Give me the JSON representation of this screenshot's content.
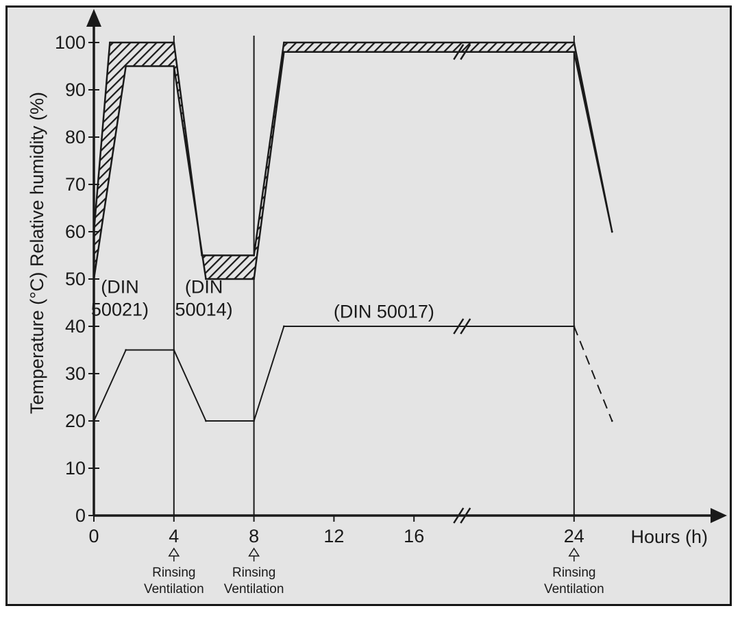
{
  "chart_data": {
    "type": "line",
    "title": "",
    "xlabel": "Hours (h)",
    "ylabel": "Temperature (°C)  Relative humidity (%)",
    "xlim": [
      0,
      26
    ],
    "ylim": [
      0,
      100
    ],
    "x_ticks": [
      "0",
      "4",
      "8",
      "12",
      "16",
      "24"
    ],
    "y_ticks": [
      "0",
      "10",
      "20",
      "30",
      "40",
      "50",
      "60",
      "70",
      "80",
      "90",
      "100"
    ],
    "grid": false,
    "axis_break": {
      "between_hours": [
        16,
        24
      ],
      "marker": "//"
    },
    "series": [
      {
        "style": "hatched-band",
        "upper": {
          "x": [
            0,
            0.8,
            4,
            5.4,
            8,
            9.5,
            24,
            25.9
          ],
          "y": [
            60,
            100,
            100,
            55,
            55,
            100,
            100,
            60
          ]
        },
        "lower": {
          "x": [
            0,
            1.6,
            4,
            5.6,
            8,
            9.5,
            24,
            25.9
          ],
          "y": [
            50,
            95,
            95,
            50,
            50,
            98,
            98,
            60
          ]
        }
      },
      {
        "style": "solid",
        "x": [
          0,
          1.6,
          4,
          5.6,
          8,
          9.5,
          24
        ],
        "y": [
          20,
          35,
          35,
          20,
          20,
          40,
          40
        ]
      },
      {
        "style": "dashed",
        "x": [
          24,
          25.9
        ],
        "y": [
          40,
          20
        ]
      }
    ],
    "phase_dividers_hours": [
      4,
      8,
      24
    ],
    "annotations": [
      {
        "x": 1.3,
        "y": 47,
        "lines": [
          "(DIN",
          "50021)"
        ]
      },
      {
        "x": 5.5,
        "y": 47,
        "lines": [
          "(DIN",
          "50014)"
        ]
      },
      {
        "x": 14.5,
        "y": 41.8,
        "lines": [
          "(DIN 50017)"
        ]
      }
    ],
    "markers": [
      {
        "x": 4,
        "lines": [
          "Rinsing",
          "Ventilation"
        ]
      },
      {
        "x": 8,
        "lines": [
          "Rinsing",
          "Ventilation"
        ]
      },
      {
        "x": 24,
        "lines": [
          "Rinsing",
          "Ventilation"
        ]
      }
    ]
  },
  "colors": {
    "background": "#e4e4e4",
    "ink": "#1a1a1a"
  }
}
